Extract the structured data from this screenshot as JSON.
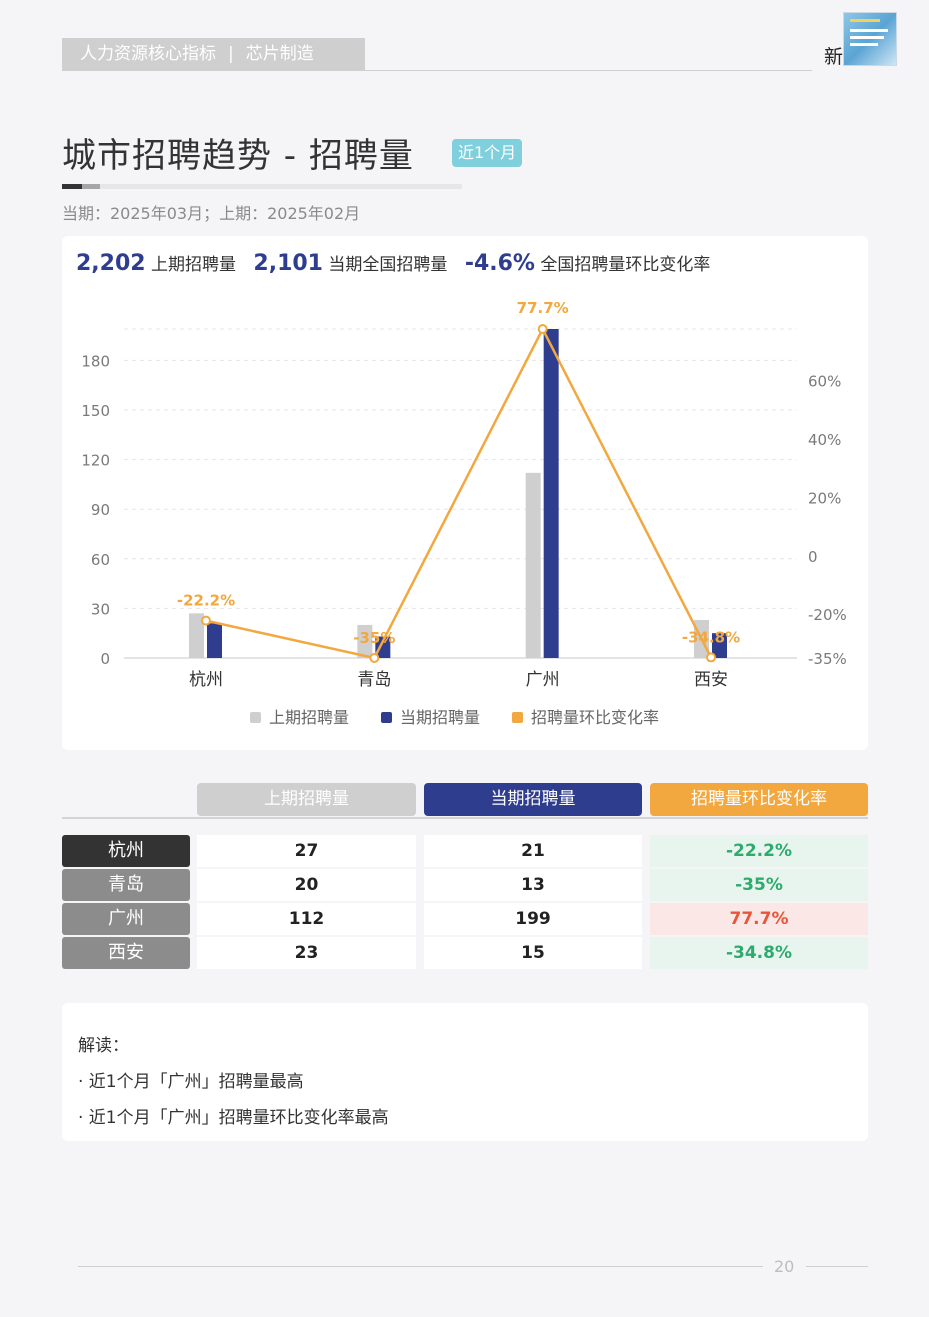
{
  "header": {
    "section": "人力资源核心指标",
    "separator": "|",
    "industry": "芯片制造",
    "corner_text": "新"
  },
  "title": {
    "main": "城市招聘趋势 - 招聘量",
    "badge": "近1个月",
    "period": "当期：2025年03月；上期：2025年02月"
  },
  "kpis": {
    "prev_value": "2,202",
    "prev_label": "上期招聘量",
    "cur_value": "2,101",
    "cur_label": "当期全国招聘量",
    "rate_value": "-4.6%",
    "rate_label": "全国招聘量环比变化率"
  },
  "colors": {
    "prev": "#cfcfcf",
    "cur": "#2f3d8f",
    "rate": "#f2a83e",
    "rate_down": "#2eaa6e",
    "rate_up": "#e8553b"
  },
  "chart_data": {
    "type": "bar",
    "categories": [
      "杭州",
      "青岛",
      "广州",
      "西安"
    ],
    "series": [
      {
        "name": "上期招聘量",
        "type": "bar",
        "values": [
          27,
          20,
          112,
          23
        ]
      },
      {
        "name": "当期招聘量",
        "type": "bar",
        "values": [
          21,
          13,
          199,
          15
        ]
      },
      {
        "name": "招聘量环比变化率",
        "type": "line",
        "axis": "right",
        "values": [
          -22.2,
          -35,
          77.7,
          -34.8
        ]
      }
    ],
    "data_labels": [
      "-22.2%",
      "-35%",
      "77.7%",
      "-34.8%"
    ],
    "y_left": {
      "ticks": [
        0,
        30,
        60,
        90,
        120,
        150,
        180
      ],
      "ylim": [
        0,
        199
      ]
    },
    "y_right": {
      "ticks": [
        "-35%",
        "-20%",
        "0",
        "20%",
        "40%",
        "60%"
      ],
      "tick_values": [
        -35,
        -20,
        0,
        20,
        40,
        60
      ],
      "ylim": [
        -35,
        77.7
      ]
    },
    "legend_position": "bottom",
    "grid": true
  },
  "table": {
    "headers": [
      "上期招聘量",
      "当期招聘量",
      "招聘量环比变化率"
    ],
    "rows": [
      {
        "city": "杭州",
        "prev": "27",
        "cur": "21",
        "rate": "-22.2%"
      },
      {
        "city": "青岛",
        "prev": "20",
        "cur": "13",
        "rate": "-35%"
      },
      {
        "city": "广州",
        "prev": "112",
        "cur": "199",
        "rate": "77.7%"
      },
      {
        "city": "西安",
        "prev": "23",
        "cur": "15",
        "rate": "-34.8%"
      }
    ]
  },
  "interpretation": {
    "heading": "解读：",
    "points": [
      "· 近1个月「广州」招聘量最高",
      "· 近1个月「广州」招聘量环比变化率最高"
    ]
  },
  "footer": {
    "page_number": "20"
  }
}
